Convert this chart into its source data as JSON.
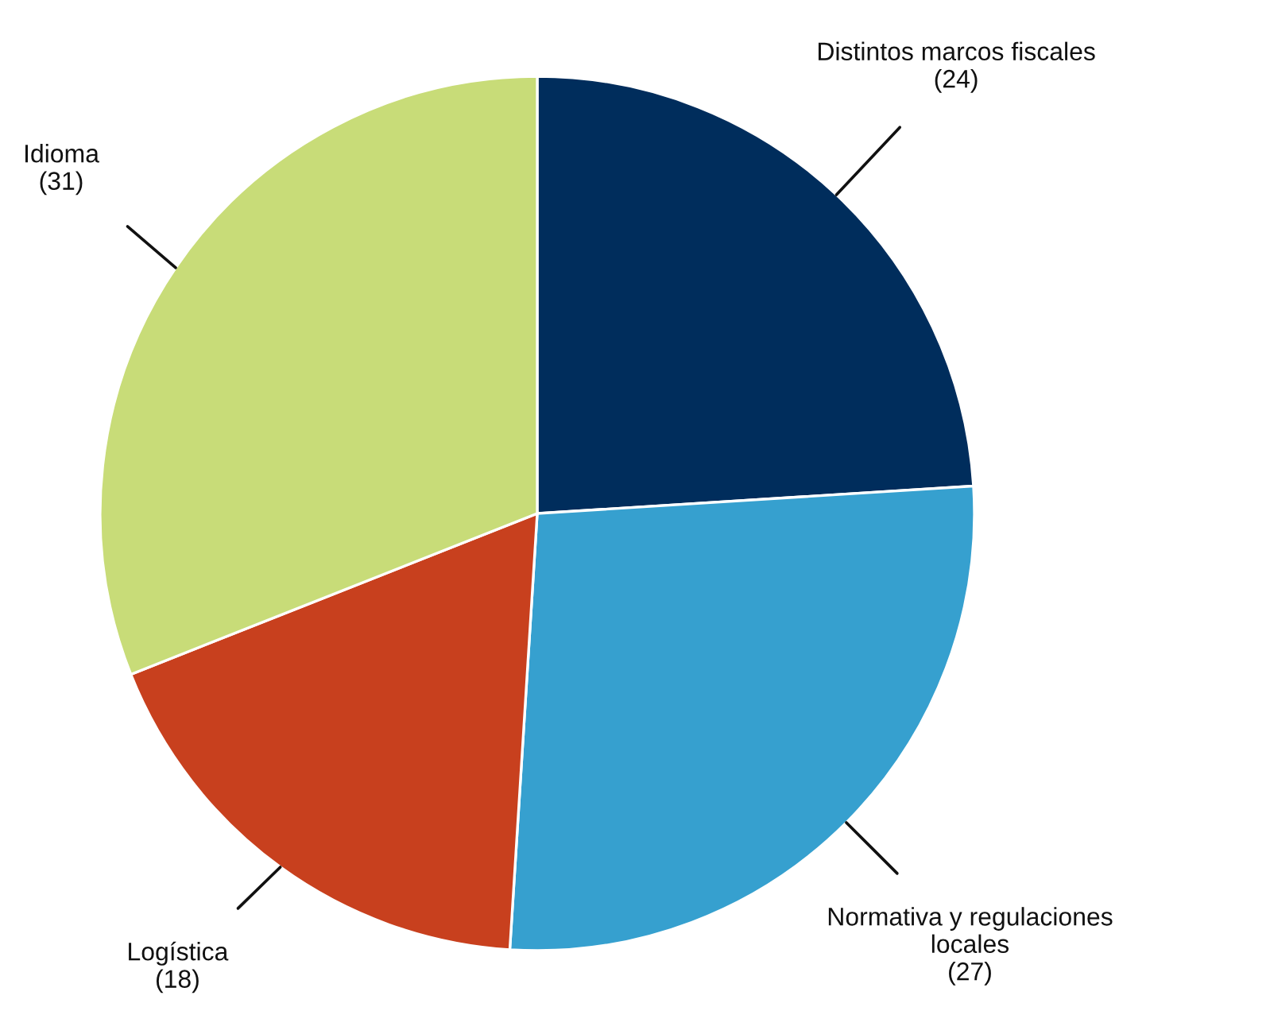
{
  "chart_data": {
    "type": "pie",
    "categories": [
      "Distintos marcos fiscales",
      "Normativa y regulaciones locales",
      "Logística",
      "Idioma"
    ],
    "values": [
      24,
      27,
      18,
      31
    ],
    "colors": [
      "#002d5c",
      "#36a0cf",
      "#c8401e",
      "#c8dc78"
    ],
    "value_labels": [
      "(24)",
      "(27)",
      "(18)",
      "(31)"
    ]
  }
}
